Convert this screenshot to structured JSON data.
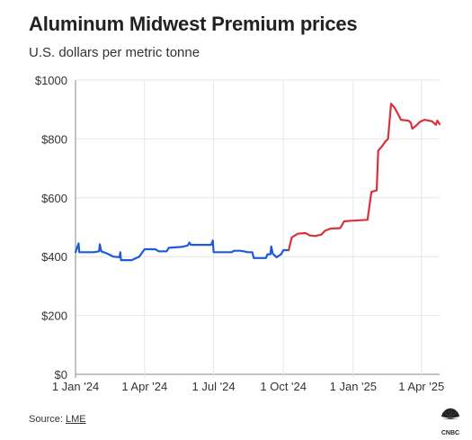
{
  "header": {
    "title": "Aluminum Midwest Premium prices",
    "subtitle": "U.S. dollars per metric tonne"
  },
  "footer": {
    "source_label": "Source: ",
    "source_link": "LME",
    "logo_text": "CNBC"
  },
  "colors": {
    "series_2024": "#1f5bd6",
    "series_2025": "#d8323c",
    "grid": "#e6e6e6",
    "axis": "#888888"
  },
  "icons": [
    "cnbc-peacock-logo"
  ],
  "chart_data": {
    "type": "line",
    "title": "Aluminum Midwest Premium prices",
    "subtitle": "U.S. dollars per metric tonne",
    "xlabel": "",
    "ylabel": "",
    "ylim": [
      0,
      1000
    ],
    "xlim": [
      "2024-01-01",
      "2025-04-25"
    ],
    "grid": true,
    "legend": "none",
    "yticks": [
      {
        "value": 0,
        "label": "$0"
      },
      {
        "value": 200,
        "label": "$200"
      },
      {
        "value": 400,
        "label": "$400"
      },
      {
        "value": 600,
        "label": "$600"
      },
      {
        "value": 800,
        "label": "$800"
      },
      {
        "value": 1000,
        "label": "$1000"
      }
    ],
    "xticks": [
      {
        "value": "2024-01-01",
        "label": "1 Jan '24"
      },
      {
        "value": "2024-04-01",
        "label": "1 Apr '24"
      },
      {
        "value": "2024-07-01",
        "label": "1 Jul '24"
      },
      {
        "value": "2024-10-01",
        "label": "1 Oct '24"
      },
      {
        "value": "2025-01-01",
        "label": "1 Jan '25"
      },
      {
        "value": "2025-04-01",
        "label": "1 Apr '25"
      }
    ],
    "series": [
      {
        "color": "#1f5bd6",
        "points": [
          [
            "2024-01-01",
            415
          ],
          [
            "2024-01-03",
            430
          ],
          [
            "2024-01-05",
            445
          ],
          [
            "2024-01-06",
            415
          ],
          [
            "2024-01-25",
            415
          ],
          [
            "2024-02-01",
            418
          ],
          [
            "2024-02-02",
            442
          ],
          [
            "2024-02-04",
            418
          ],
          [
            "2024-02-12",
            410
          ],
          [
            "2024-02-20",
            400
          ],
          [
            "2024-02-28",
            398
          ],
          [
            "2024-02-29",
            415
          ],
          [
            "2024-03-01",
            388
          ],
          [
            "2024-03-15",
            388
          ],
          [
            "2024-03-25",
            400
          ],
          [
            "2024-04-01",
            425
          ],
          [
            "2024-04-15",
            425
          ],
          [
            "2024-04-20",
            418
          ],
          [
            "2024-04-30",
            418
          ],
          [
            "2024-05-03",
            430
          ],
          [
            "2024-05-20",
            433
          ],
          [
            "2024-05-28",
            438
          ],
          [
            "2024-05-30",
            448
          ],
          [
            "2024-06-01",
            440
          ],
          [
            "2024-06-28",
            440
          ],
          [
            "2024-06-30",
            455
          ],
          [
            "2024-07-01",
            415
          ],
          [
            "2024-07-25",
            415
          ],
          [
            "2024-07-28",
            420
          ],
          [
            "2024-08-05",
            420
          ],
          [
            "2024-08-10",
            418
          ],
          [
            "2024-08-15",
            415
          ],
          [
            "2024-08-21",
            415
          ],
          [
            "2024-08-23",
            395
          ],
          [
            "2024-09-08",
            395
          ],
          [
            "2024-09-10",
            408
          ],
          [
            "2024-09-14",
            408
          ],
          [
            "2024-09-15",
            435
          ],
          [
            "2024-09-17",
            410
          ],
          [
            "2024-09-22",
            398
          ],
          [
            "2024-09-28",
            408
          ],
          [
            "2024-10-01",
            422
          ],
          [
            "2024-10-08",
            422
          ]
        ]
      },
      {
        "color": "#d8323c",
        "points": [
          [
            "2024-10-08",
            422
          ],
          [
            "2024-10-12",
            465
          ],
          [
            "2024-10-20",
            478
          ],
          [
            "2024-10-30",
            480
          ],
          [
            "2024-11-05",
            472
          ],
          [
            "2024-11-12",
            470
          ],
          [
            "2024-11-20",
            475
          ],
          [
            "2024-11-25",
            488
          ],
          [
            "2024-12-02",
            495
          ],
          [
            "2024-12-15",
            497
          ],
          [
            "2024-12-20",
            520
          ],
          [
            "2024-12-30",
            522
          ],
          [
            "2025-01-20",
            525
          ],
          [
            "2025-01-25",
            620
          ],
          [
            "2025-02-01",
            625
          ],
          [
            "2025-02-03",
            760
          ],
          [
            "2025-02-08",
            775
          ],
          [
            "2025-02-12",
            790
          ],
          [
            "2025-02-16",
            800
          ],
          [
            "2025-02-20",
            920
          ],
          [
            "2025-02-25",
            905
          ],
          [
            "2025-03-05",
            865
          ],
          [
            "2025-03-15",
            862
          ],
          [
            "2025-03-18",
            855
          ],
          [
            "2025-03-20",
            835
          ],
          [
            "2025-03-25",
            845
          ],
          [
            "2025-03-30",
            858
          ],
          [
            "2025-04-05",
            865
          ],
          [
            "2025-04-15",
            860
          ],
          [
            "2025-04-20",
            848
          ],
          [
            "2025-04-22",
            862
          ],
          [
            "2025-04-25",
            850
          ]
        ]
      }
    ]
  }
}
